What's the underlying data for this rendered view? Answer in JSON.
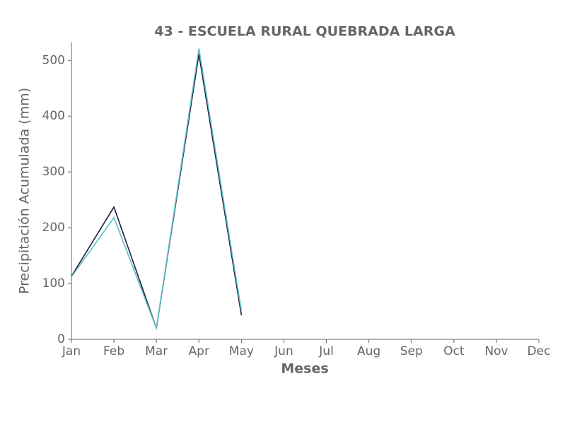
{
  "chart_data": {
    "type": "line",
    "title": "43 - ESCUELA RURAL QUEBRADA LARGA",
    "x_label": "Meses",
    "y_label": "Precipitación Acumulada (mm)",
    "categories": [
      "Jan",
      "Feb",
      "Mar",
      "Apr",
      "May",
      "Jun",
      "Jul",
      "Aug",
      "Sep",
      "Oct",
      "Nov",
      "Dec"
    ],
    "series": [
      {
        "color": "#1f1d3d",
        "values": [
          113,
          237,
          20,
          511,
          43,
          null,
          null,
          null,
          null,
          null,
          null,
          null
        ]
      },
      {
        "color": "#5bbcc0",
        "values": [
          112,
          218,
          20,
          521,
          51,
          null,
          null,
          null,
          null,
          null,
          null,
          null
        ]
      }
    ],
    "ylim": [
      0,
      532
    ],
    "yticks": [
      0,
      100,
      200,
      300,
      400,
      500
    ],
    "grid": false
  }
}
